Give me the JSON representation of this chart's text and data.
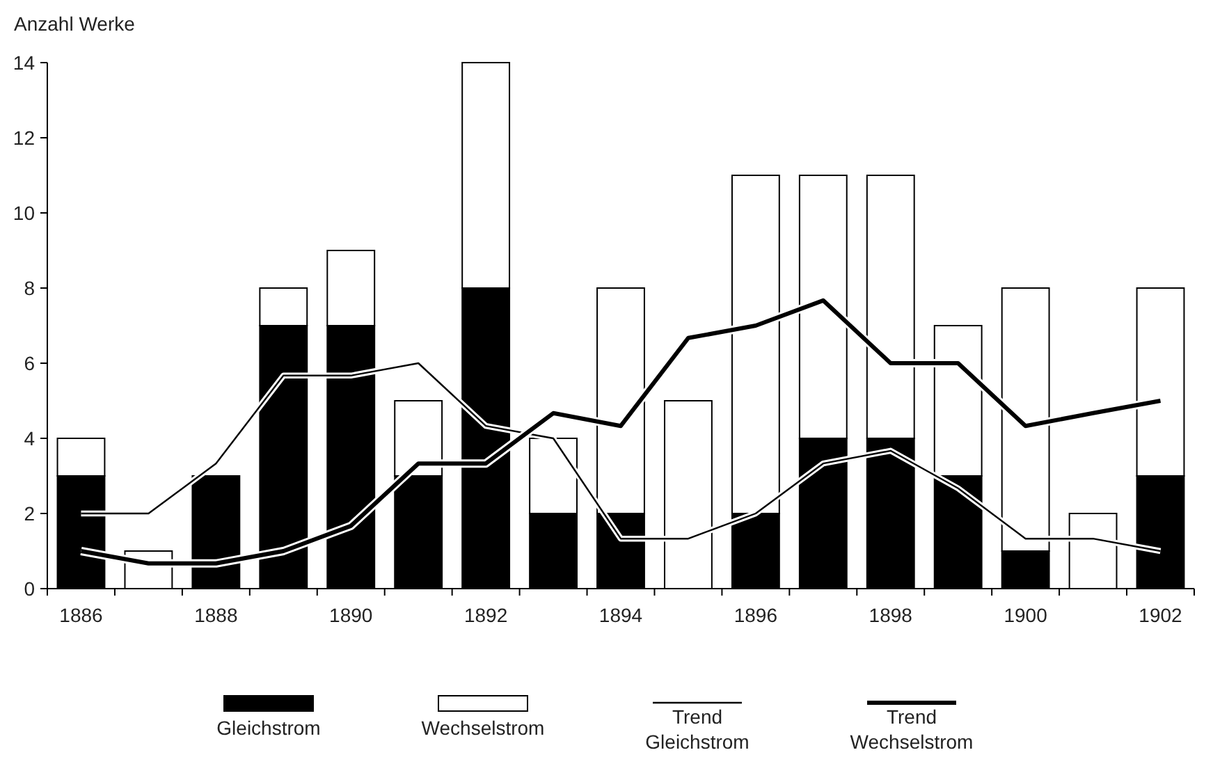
{
  "chart_data": {
    "type": "bar",
    "ylabel": "Anzahl Werke",
    "categories": [
      "1886",
      null,
      "1888",
      null,
      "1890",
      null,
      "1892",
      null,
      "1894",
      null,
      "1896",
      null,
      "1898",
      null,
      "1900",
      null,
      "1902"
    ],
    "series": [
      {
        "name": "Gleichstrom",
        "color": "#000000",
        "values": [
          3,
          0,
          3,
          7,
          7,
          3,
          8,
          2,
          2,
          0,
          2,
          4,
          4,
          3,
          1,
          0,
          3
        ]
      },
      {
        "name": "Wechselstrom",
        "color": "#ffffff",
        "values": [
          1,
          1,
          0,
          1,
          2,
          2,
          6,
          2,
          6,
          5,
          9,
          7,
          7,
          4,
          7,
          2,
          5
        ]
      },
      {
        "name": "Trend Gleichstrom",
        "type": "line",
        "color": "#000000",
        "values": [
          2,
          2,
          3.33,
          5.67,
          5.67,
          6,
          4.33,
          4,
          1.33,
          1.33,
          2,
          3.33,
          3.67,
          2.67,
          1.33,
          1.33,
          1
        ]
      },
      {
        "name": "Trend Wechselstrom",
        "type": "line",
        "color": "#000000",
        "values": [
          1,
          0.67,
          0.67,
          1,
          1.67,
          3.33,
          3.33,
          4.67,
          4.33,
          6.67,
          7,
          7.67,
          6,
          6,
          4.33,
          4.67,
          5
        ]
      }
    ],
    "stacked": true,
    "ylim": [
      0,
      14
    ],
    "yticks": [
      0,
      2,
      4,
      6,
      8,
      10,
      12,
      14
    ],
    "grid": false,
    "legend": "bottom",
    "marker": "none",
    "line_style": "solid"
  }
}
